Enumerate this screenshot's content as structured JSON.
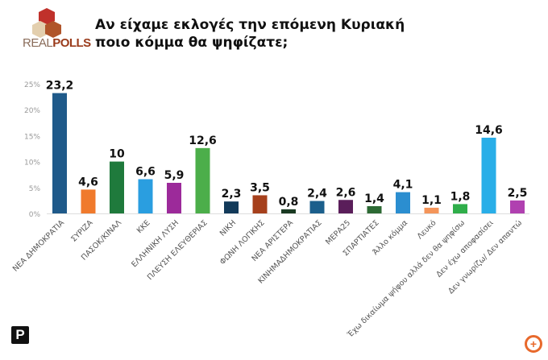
{
  "logo": {
    "text_a": "REAL",
    "text_b": "POLLS"
  },
  "chart_data": {
    "type": "bar",
    "title": "Αν είχαμε εκλογές την επόμενη Κυριακή ποιο κόμμα θα ψηφίζατε;",
    "title_line1": "Αν είχαμε εκλογές την επόμενη Κυριακή",
    "title_line2": "ποιο κόμμα θα ψηφίζατε;",
    "categories": [
      "ΝΕΑ ΔΗΜΟΚΡΑΤΙΑ",
      "ΣΥΡΙΖΑ",
      "ΠΑΣΟΚ/ΚΙΝΑΛ",
      "ΚΚΕ",
      "ΕΛΛΗΝΙΚΗ ΛΥΣΗ",
      "ΠΛΕΥΣΗ ΕΛΕΥΘΕΡΙΑΣ",
      "ΝΙΚΗ",
      "ΦΩΝΗ ΛΟΓΙΚΗΣ",
      "ΝΕΑ ΑΡΙΣΤΕΡΑ",
      "ΚΙΝΗΜΑΔΗΜΟΚΡΑΤΙΑΣ",
      "ΜΕΡΑ25",
      "ΣΠΑΡΤΙΑΤΕΣ",
      "Άλλο κόμμα",
      "Λευκό",
      "Έχω δικαίωμα ψήφου αλλά δεν θα ψηφίσω",
      "Δεν έχω αποφασίσει",
      "Δεν γνωρίζω/ Δεν απαντώ"
    ],
    "values": [
      23.2,
      4.6,
      10,
      6.6,
      5.9,
      12.6,
      2.3,
      3.5,
      0.8,
      2.4,
      2.6,
      1.4,
      4.1,
      1.1,
      1.8,
      14.6,
      2.5
    ],
    "data_labels": [
      "23,2",
      "4,6",
      "10",
      "6,6",
      "5,9",
      "12,6",
      "2,3",
      "3,5",
      "0,8",
      "2,4",
      "2,6",
      "1,4",
      "4,1",
      "1,1",
      "1,8",
      "14,6",
      "2,5"
    ],
    "colors": [
      "#1f5a8a",
      "#f07a2c",
      "#1f7a3c",
      "#2a9ee0",
      "#9c2a9a",
      "#4cae4a",
      "#123a5a",
      "#a6401c",
      "#1a3a22",
      "#1b5f8c",
      "#5a1e5a",
      "#2d6a34",
      "#2b8ed0",
      "#f4955a",
      "#2fae4a",
      "#29aee8",
      "#b040b0"
    ],
    "yticks": [
      "0%",
      "5%",
      "10%",
      "15%",
      "20%",
      "25%"
    ],
    "ylim": [
      0,
      25
    ],
    "grid": false
  }
}
